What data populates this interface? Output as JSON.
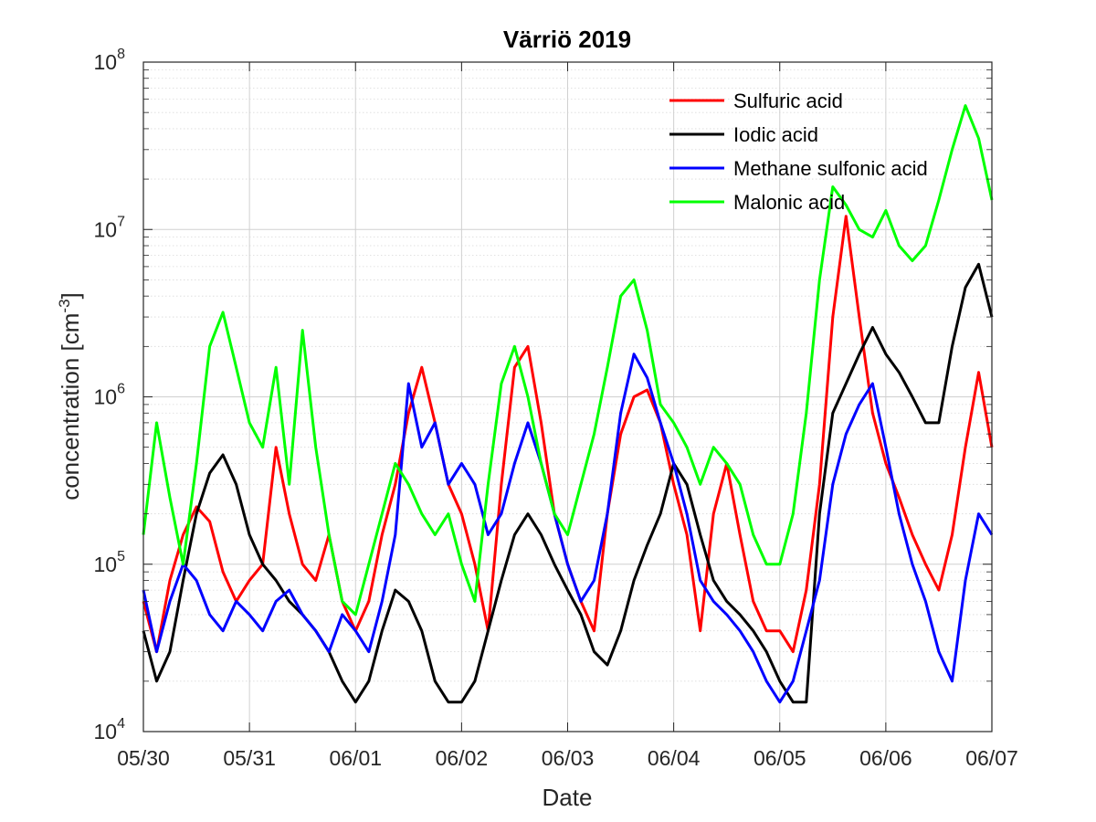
{
  "chart_data": {
    "type": "line",
    "title": "Värriö 2019",
    "xlabel": "Date",
    "ylabel_main": "concentration [cm",
    "ylabel_sup": "-3",
    "ylabel_end": "]",
    "y_scale": "log",
    "ylim": [
      10000,
      100000000
    ],
    "y_ticks": [
      {
        "value": 10000,
        "base": "10",
        "exp": "4"
      },
      {
        "value": 100000,
        "base": "10",
        "exp": "5"
      },
      {
        "value": 1000000,
        "base": "10",
        "exp": "6"
      },
      {
        "value": 10000000,
        "base": "10",
        "exp": "7"
      },
      {
        "value": 100000000,
        "base": "10",
        "exp": "8"
      }
    ],
    "xlim": [
      "2019-05-30",
      "2019-06-07"
    ],
    "x_ticks": [
      "05/30",
      "05/31",
      "06/01",
      "06/02",
      "06/03",
      "06/04",
      "06/05",
      "06/06",
      "06/07"
    ],
    "grid": "on",
    "minor_grid": "on",
    "legend_position": "top-right",
    "series": [
      {
        "name": "Sulfuric acid",
        "color": "#ff0000",
        "x": [
          "05-30 00:00",
          "05-30 03:00",
          "05-30 06:00",
          "05-30 09:00",
          "05-30 12:00",
          "05-30 15:00",
          "05-30 18:00",
          "05-30 21:00",
          "05-31 00:00",
          "05-31 03:00",
          "05-31 06:00",
          "05-31 09:00",
          "05-31 12:00",
          "05-31 15:00",
          "05-31 18:00",
          "05-31 21:00",
          "06-01 00:00",
          "06-01 03:00",
          "06-01 06:00",
          "06-01 09:00",
          "06-01 12:00",
          "06-01 15:00",
          "06-01 18:00",
          "06-01 21:00",
          "06-02 00:00",
          "06-02 03:00",
          "06-02 06:00",
          "06-02 09:00",
          "06-02 12:00",
          "06-02 15:00",
          "06-02 18:00",
          "06-02 21:00",
          "06-03 00:00",
          "06-03 03:00",
          "06-03 06:00",
          "06-03 09:00",
          "06-03 12:00",
          "06-03 15:00",
          "06-03 18:00",
          "06-03 21:00",
          "06-04 00:00",
          "06-04 03:00",
          "06-04 06:00",
          "06-04 09:00",
          "06-04 12:00",
          "06-04 15:00",
          "06-04 18:00",
          "06-04 21:00",
          "06-05 00:00",
          "06-05 03:00",
          "06-05 06:00",
          "06-05 09:00",
          "06-05 12:00",
          "06-05 15:00",
          "06-05 18:00",
          "06-05 21:00",
          "06-06 00:00",
          "06-06 03:00",
          "06-06 06:00",
          "06-06 09:00",
          "06-06 12:00",
          "06-06 15:00",
          "06-06 18:00",
          "06-06 21:00",
          "06-07 00:00"
        ],
        "y": [
          60000,
          30000,
          80000,
          150000,
          220000,
          180000,
          90000,
          60000,
          80000,
          100000,
          500000,
          200000,
          100000,
          80000,
          150000,
          60000,
          40000,
          60000,
          150000,
          300000,
          800000,
          1500000,
          700000,
          300000,
          200000,
          100000,
          40000,
          300000,
          1500000,
          2000000,
          700000,
          200000,
          100000,
          60000,
          40000,
          200000,
          600000,
          1000000,
          1100000,
          700000,
          300000,
          150000,
          40000,
          200000,
          400000,
          150000,
          60000,
          40000,
          40000,
          30000,
          70000,
          300000,
          3000000,
          12000000,
          3000000,
          800000,
          400000,
          250000,
          150000,
          100000,
          70000,
          150000,
          500000,
          1400000,
          500000
        ]
      },
      {
        "name": "Iodic acid",
        "color": "#000000",
        "x": [
          "05-30 00:00",
          "05-30 03:00",
          "05-30 06:00",
          "05-30 09:00",
          "05-30 12:00",
          "05-30 15:00",
          "05-30 18:00",
          "05-30 21:00",
          "05-31 00:00",
          "05-31 03:00",
          "05-31 06:00",
          "05-31 09:00",
          "05-31 12:00",
          "05-31 15:00",
          "05-31 18:00",
          "05-31 21:00",
          "06-01 00:00",
          "06-01 03:00",
          "06-01 06:00",
          "06-01 09:00",
          "06-01 12:00",
          "06-01 15:00",
          "06-01 18:00",
          "06-01 21:00",
          "06-02 00:00",
          "06-02 03:00",
          "06-02 06:00",
          "06-02 09:00",
          "06-02 12:00",
          "06-02 15:00",
          "06-02 18:00",
          "06-02 21:00",
          "06-03 00:00",
          "06-03 03:00",
          "06-03 06:00",
          "06-03 09:00",
          "06-03 12:00",
          "06-03 15:00",
          "06-03 18:00",
          "06-03 21:00",
          "06-04 00:00",
          "06-04 03:00",
          "06-04 06:00",
          "06-04 09:00",
          "06-04 12:00",
          "06-04 15:00",
          "06-04 18:00",
          "06-04 21:00",
          "06-05 00:00",
          "06-05 03:00",
          "06-05 06:00",
          "06-05 09:00",
          "06-05 12:00",
          "06-05 15:00",
          "06-05 18:00",
          "06-05 21:00",
          "06-06 00:00",
          "06-06 03:00",
          "06-06 06:00",
          "06-06 09:00",
          "06-06 12:00",
          "06-06 15:00",
          "06-06 18:00",
          "06-06 21:00",
          "06-07 00:00"
        ],
        "y": [
          40000,
          20000,
          30000,
          80000,
          200000,
          350000,
          450000,
          300000,
          150000,
          100000,
          80000,
          60000,
          50000,
          40000,
          30000,
          20000,
          15000,
          20000,
          40000,
          70000,
          60000,
          40000,
          20000,
          15000,
          15000,
          20000,
          40000,
          80000,
          150000,
          200000,
          150000,
          100000,
          70000,
          50000,
          30000,
          25000,
          40000,
          80000,
          130000,
          200000,
          400000,
          300000,
          150000,
          80000,
          60000,
          50000,
          40000,
          30000,
          20000,
          15000,
          15000,
          200000,
          800000,
          1200000,
          1800000,
          2600000,
          1800000,
          1400000,
          1000000,
          700000,
          700000,
          2000000,
          4500000,
          6200000,
          3000000
        ]
      },
      {
        "name": "Methane sulfonic acid",
        "color": "#0000ff",
        "x": [
          "05-30 00:00",
          "05-30 03:00",
          "05-30 06:00",
          "05-30 09:00",
          "05-30 12:00",
          "05-30 15:00",
          "05-30 18:00",
          "05-30 21:00",
          "05-31 00:00",
          "05-31 03:00",
          "05-31 06:00",
          "05-31 09:00",
          "05-31 12:00",
          "05-31 15:00",
          "05-31 18:00",
          "05-31 21:00",
          "06-01 00:00",
          "06-01 03:00",
          "06-01 06:00",
          "06-01 09:00",
          "06-01 12:00",
          "06-01 15:00",
          "06-01 18:00",
          "06-01 21:00",
          "06-02 00:00",
          "06-02 03:00",
          "06-02 06:00",
          "06-02 09:00",
          "06-02 12:00",
          "06-02 15:00",
          "06-02 18:00",
          "06-02 21:00",
          "06-03 00:00",
          "06-03 03:00",
          "06-03 06:00",
          "06-03 09:00",
          "06-03 12:00",
          "06-03 15:00",
          "06-03 18:00",
          "06-03 21:00",
          "06-04 00:00",
          "06-04 03:00",
          "06-04 06:00",
          "06-04 09:00",
          "06-04 12:00",
          "06-04 15:00",
          "06-04 18:00",
          "06-04 21:00",
          "06-05 00:00",
          "06-05 03:00",
          "06-05 06:00",
          "06-05 09:00",
          "06-05 12:00",
          "06-05 15:00",
          "06-05 18:00",
          "06-05 21:00",
          "06-06 00:00",
          "06-06 03:00",
          "06-06 06:00",
          "06-06 09:00",
          "06-06 12:00",
          "06-06 15:00",
          "06-06 18:00",
          "06-06 21:00",
          "06-07 00:00"
        ],
        "y": [
          70000,
          30000,
          60000,
          100000,
          80000,
          50000,
          40000,
          60000,
          50000,
          40000,
          60000,
          70000,
          50000,
          40000,
          30000,
          50000,
          40000,
          30000,
          60000,
          150000,
          1200000,
          500000,
          700000,
          300000,
          400000,
          300000,
          150000,
          200000,
          400000,
          700000,
          400000,
          200000,
          100000,
          60000,
          80000,
          200000,
          800000,
          1800000,
          1300000,
          700000,
          400000,
          200000,
          80000,
          60000,
          50000,
          40000,
          30000,
          20000,
          15000,
          20000,
          40000,
          80000,
          300000,
          600000,
          900000,
          1200000,
          500000,
          200000,
          100000,
          60000,
          30000,
          20000,
          80000,
          200000,
          150000
        ]
      },
      {
        "name": "Malonic acid",
        "color": "#00ff00",
        "x": [
          "05-30 00:00",
          "05-30 03:00",
          "05-30 06:00",
          "05-30 09:00",
          "05-30 12:00",
          "05-30 15:00",
          "05-30 18:00",
          "05-30 21:00",
          "05-31 00:00",
          "05-31 03:00",
          "05-31 06:00",
          "05-31 09:00",
          "05-31 12:00",
          "05-31 15:00",
          "05-31 18:00",
          "05-31 21:00",
          "06-01 00:00",
          "06-01 03:00",
          "06-01 06:00",
          "06-01 09:00",
          "06-01 12:00",
          "06-01 15:00",
          "06-01 18:00",
          "06-01 21:00",
          "06-02 00:00",
          "06-02 03:00",
          "06-02 06:00",
          "06-02 09:00",
          "06-02 12:00",
          "06-02 15:00",
          "06-02 18:00",
          "06-02 21:00",
          "06-03 00:00",
          "06-03 03:00",
          "06-03 06:00",
          "06-03 09:00",
          "06-03 12:00",
          "06-03 15:00",
          "06-03 18:00",
          "06-03 21:00",
          "06-04 00:00",
          "06-04 03:00",
          "06-04 06:00",
          "06-04 09:00",
          "06-04 12:00",
          "06-04 15:00",
          "06-04 18:00",
          "06-04 21:00",
          "06-05 00:00",
          "06-05 03:00",
          "06-05 06:00",
          "06-05 09:00",
          "06-05 12:00",
          "06-05 15:00",
          "06-05 18:00",
          "06-05 21:00",
          "06-06 00:00",
          "06-06 03:00",
          "06-06 06:00",
          "06-06 09:00",
          "06-06 12:00",
          "06-06 15:00",
          "06-06 18:00",
          "06-06 21:00",
          "06-07 00:00"
        ],
        "y": [
          150000,
          700000,
          250000,
          100000,
          400000,
          2000000,
          3200000,
          1500000,
          700000,
          500000,
          1500000,
          300000,
          2500000,
          500000,
          150000,
          60000,
          50000,
          100000,
          200000,
          400000,
          300000,
          200000,
          150000,
          200000,
          100000,
          60000,
          300000,
          1200000,
          2000000,
          1000000,
          400000,
          200000,
          150000,
          300000,
          600000,
          1500000,
          4000000,
          5000000,
          2500000,
          900000,
          700000,
          500000,
          300000,
          500000,
          400000,
          300000,
          150000,
          100000,
          100000,
          200000,
          800000,
          5000000,
          18000000,
          14000000,
          10000000,
          9000000,
          13000000,
          8000000,
          6500000,
          8000000,
          15000000,
          30000000,
          55000000,
          35000000,
          15000000
        ]
      }
    ]
  }
}
